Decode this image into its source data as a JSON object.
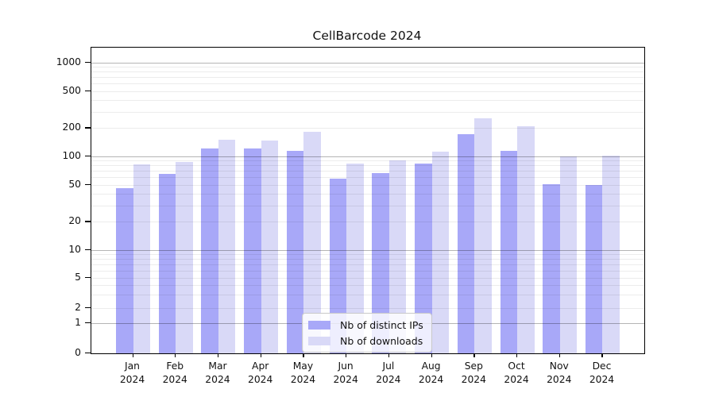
{
  "title": "CellBarcode 2024",
  "chart_data": {
    "type": "bar",
    "yscale": "symlog",
    "title": "CellBarcode 2024",
    "xlabel": "",
    "ylabel": "",
    "categories": [
      "Jan",
      "Feb",
      "Mar",
      "Apr",
      "May",
      "Jun",
      "Jul",
      "Aug",
      "Sep",
      "Oct",
      "Nov",
      "Dec"
    ],
    "x_year_line": "2024",
    "series": [
      {
        "name": "Nb of distinct IPs",
        "color": "#a8a8f8",
        "values": [
          46,
          65,
          121,
          121,
          115,
          58,
          67,
          84,
          172,
          114,
          51,
          50
        ]
      },
      {
        "name": "Nb of downloads",
        "color": "#d9d9f7",
        "values": [
          82,
          88,
          150,
          149,
          183,
          84,
          90,
          112,
          257,
          211,
          101,
          103
        ]
      }
    ],
    "y_ticks": [
      0,
      1,
      2,
      5,
      10,
      20,
      50,
      100,
      200,
      500,
      1000
    ],
    "y_minor_grid_values": [
      2,
      3,
      4,
      5,
      6,
      7,
      8,
      9,
      20,
      30,
      40,
      50,
      60,
      70,
      80,
      90,
      200,
      300,
      400,
      500,
      600,
      700,
      800,
      900
    ],
    "y_major_grid_values": [
      1,
      10,
      100,
      1000
    ],
    "ylim": [
      0,
      1300
    ],
    "grid": true,
    "legend_position": "lower-center"
  },
  "colors": {
    "background": "#ffffff",
    "axis": "#000000",
    "minor_grid": "#ececec",
    "major_grid": "#b5b5b5",
    "text": "#111111"
  }
}
